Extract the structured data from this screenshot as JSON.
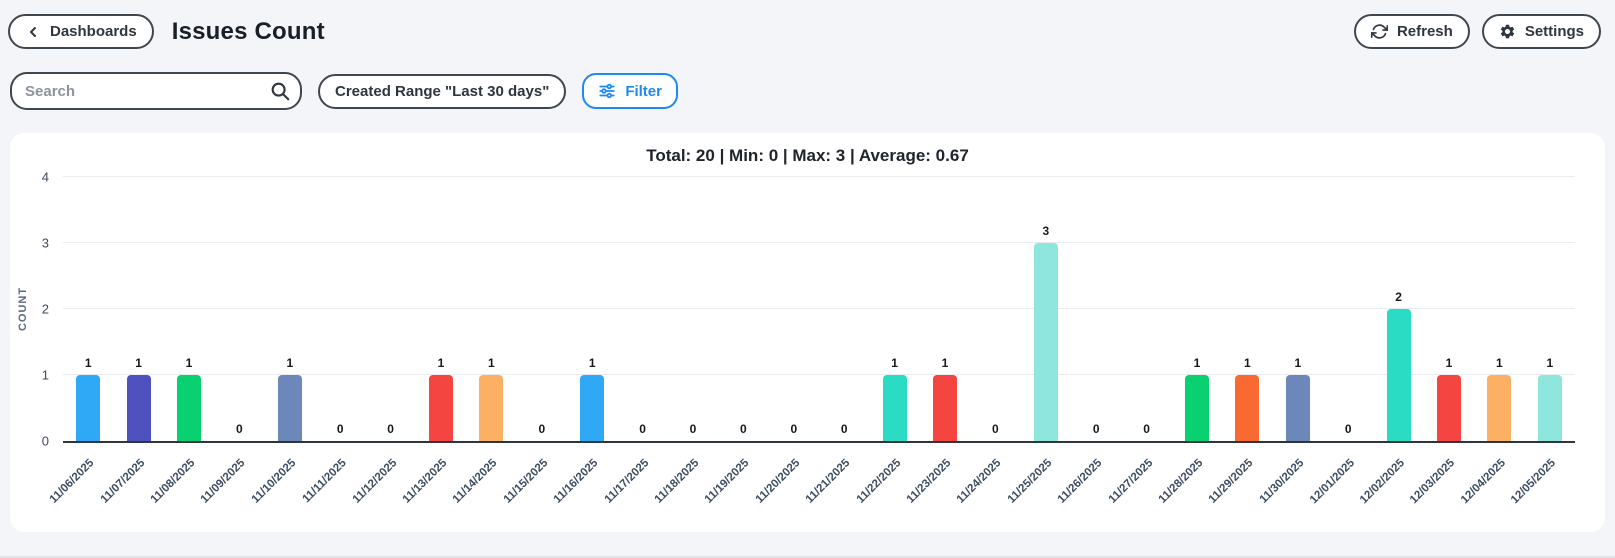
{
  "header": {
    "back_button": "Dashboards",
    "title": "Issues Count",
    "refresh_label": "Refresh",
    "settings_label": "Settings"
  },
  "toolbar": {
    "search_placeholder": "Search",
    "created_range_label": "Created Range \"Last 30 days\"",
    "filter_label": "Filter"
  },
  "colors": {
    "accent_blue": "#1e88f5",
    "border_dark": "#3e4650",
    "page_bg": "#f4f5f8",
    "card_bg": "#ffffff"
  },
  "chart_data": {
    "type": "bar",
    "title": "Total: 20 | Min: 0 | Max: 3 | Average: 0.67",
    "xlabel": "",
    "ylabel": "COUNT",
    "ylim": [
      0,
      4
    ],
    "yticks": [
      0,
      1,
      2,
      3,
      4
    ],
    "grid": true,
    "show_value_labels": true,
    "categories": [
      "11/06/2025",
      "11/07/2025",
      "11/08/2025",
      "11/09/2025",
      "11/10/2025",
      "11/11/2025",
      "11/12/2025",
      "11/13/2025",
      "11/14/2025",
      "11/15/2025",
      "11/16/2025",
      "11/17/2025",
      "11/18/2025",
      "11/19/2025",
      "11/20/2025",
      "11/21/2025",
      "11/22/2025",
      "11/23/2025",
      "11/24/2025",
      "11/25/2025",
      "11/26/2025",
      "11/27/2025",
      "11/28/2025",
      "11/29/2025",
      "11/30/2025",
      "12/01/2025",
      "12/02/2025",
      "12/03/2025",
      "12/04/2025",
      "12/05/2025"
    ],
    "values": [
      1,
      1,
      1,
      0,
      1,
      0,
      0,
      1,
      1,
      0,
      1,
      0,
      0,
      0,
      0,
      0,
      1,
      1,
      0,
      3,
      0,
      0,
      1,
      1,
      1,
      0,
      2,
      1,
      1,
      1
    ],
    "bar_colors": [
      "#2fa9f5",
      "#4e51be",
      "#09d071",
      null,
      "#6c87b9",
      null,
      null,
      "#f44541",
      "#fbb064",
      null,
      "#2fa9f5",
      null,
      null,
      null,
      null,
      null,
      "#2bdcc4",
      "#f44541",
      null,
      "#8fe6dc",
      null,
      null,
      "#09d071",
      "#f96a33",
      "#6c87b9",
      null,
      "#2bdcc4",
      "#f44541",
      "#fbb064",
      "#8fe6dc"
    ]
  }
}
